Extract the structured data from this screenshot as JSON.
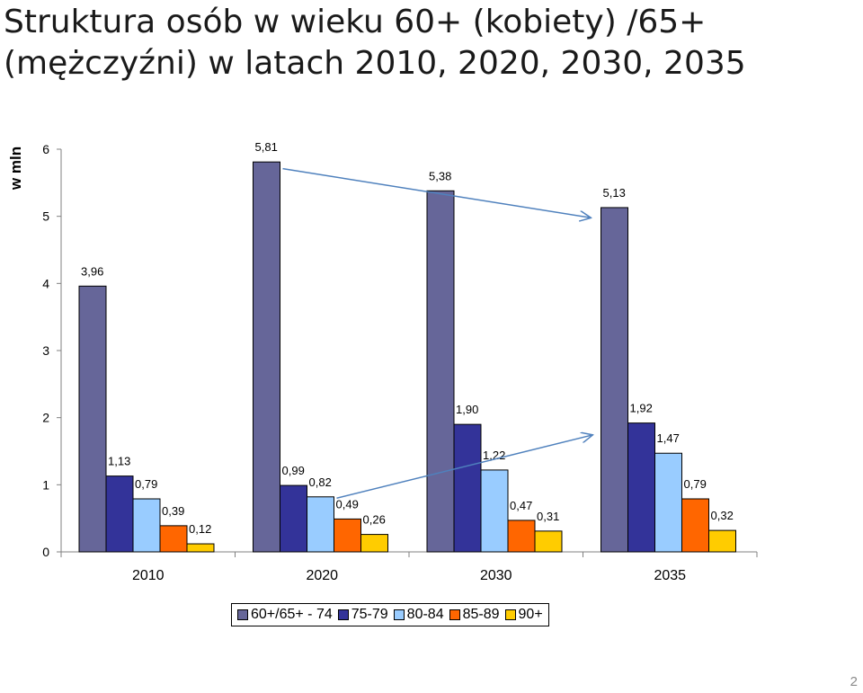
{
  "title_lines": [
    "Struktura osób w wieku 60+ (kobiety) /65+",
    "(mężczyźni) w latach 2010, 2020, 2030, 2035"
  ],
  "y_unit": "w mln",
  "page_number": "2",
  "chart_data": {
    "type": "bar",
    "categories": [
      "2010",
      "2020",
      "2030",
      "2035"
    ],
    "ylim": [
      0,
      6
    ],
    "yticks": [
      "0",
      "1",
      "2",
      "3",
      "4",
      "5",
      "6"
    ],
    "series": [
      {
        "name": "60+/65+ - 74",
        "color": "#666699",
        "values": [
          3.96,
          5.81,
          5.38,
          5.13
        ],
        "labels": [
          "3,96",
          "5,81",
          "5,38",
          "5,13"
        ]
      },
      {
        "name": "75-79",
        "color": "#333399",
        "values": [
          1.13,
          0.99,
          1.9,
          1.92
        ],
        "labels": [
          "1,13",
          "0,99",
          "1,90",
          "1,92"
        ]
      },
      {
        "name": "80-84",
        "color": "#99ccff",
        "values": [
          0.79,
          0.82,
          1.22,
          1.47
        ],
        "labels": [
          "0,79",
          "0,82",
          "1,22",
          "1,47"
        ]
      },
      {
        "name": "85-89",
        "color": "#ff6600",
        "values": [
          0.39,
          0.49,
          0.47,
          0.79
        ],
        "labels": [
          "0,39",
          "0,49",
          "0,47",
          "0,79"
        ]
      },
      {
        "name": "90+",
        "color": "#ffcc00",
        "values": [
          0.12,
          0.26,
          0.31,
          0.32
        ],
        "labels": [
          "0,12",
          "0,26",
          "0,31",
          "0,32"
        ]
      }
    ],
    "annotations": [
      "trend-arrow-downward",
      "trend-arrow-upward"
    ],
    "arrow_color": "#4f81bd",
    "grid": false,
    "legend_position": "bottom"
  }
}
